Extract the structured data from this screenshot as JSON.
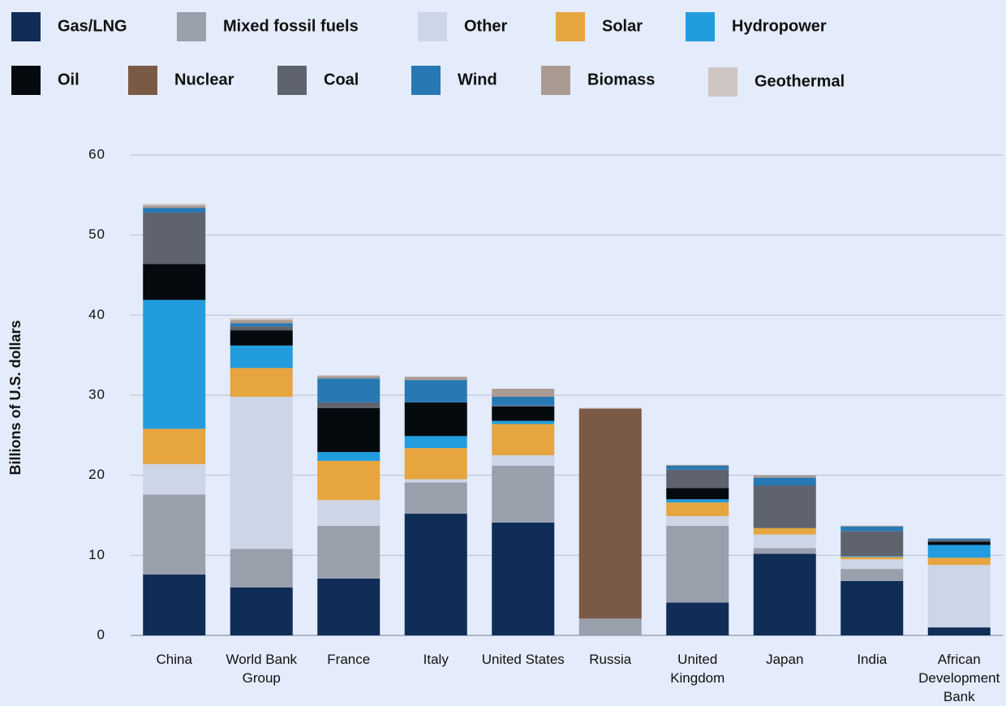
{
  "chart_data": {
    "type": "stacked_bar",
    "y_label": "Billions of U.S. dollars",
    "categories": [
      "China",
      "World Bank Group",
      "France",
      "Italy",
      "United States",
      "Russia",
      "United Kingdom",
      "Japan",
      "India",
      "African Development Bank"
    ],
    "series": [
      {
        "name": "Gas/LNG",
        "color": "#0f2d57",
        "values": [
          7.6,
          6.0,
          7.1,
          15.2,
          14.1,
          0,
          4.1,
          10.2,
          6.8,
          1.0
        ]
      },
      {
        "name": "Mixed fossil fuels",
        "color": "#9aa0ab",
        "values": [
          10.0,
          4.8,
          6.6,
          3.9,
          7.1,
          2.1,
          9.6,
          0.7,
          1.5,
          0
        ]
      },
      {
        "name": "Other",
        "color": "#ccd6e6",
        "values": [
          3.8,
          19.0,
          3.2,
          0.4,
          1.3,
          0,
          1.2,
          1.7,
          1.2,
          7.8
        ]
      },
      {
        "name": "Solar",
        "color": "#e6a53f",
        "values": [
          4.4,
          3.6,
          4.9,
          3.9,
          3.9,
          0,
          1.7,
          0.8,
          0.3,
          0.9
        ]
      },
      {
        "name": "Hydropower",
        "color": "#219ddf",
        "values": [
          16.1,
          2.8,
          1.1,
          1.5,
          0.4,
          0,
          0.4,
          0,
          0.1,
          1.6
        ]
      },
      {
        "name": "Oil",
        "color": "#050a0f",
        "values": [
          4.5,
          1.9,
          5.5,
          4.2,
          1.8,
          0,
          1.4,
          0,
          0,
          0.4
        ]
      },
      {
        "name": "Nuclear",
        "color": "#7a5a47",
        "values": [
          0,
          0,
          0,
          0,
          0,
          26.2,
          0,
          0,
          0,
          0
        ]
      },
      {
        "name": "Coal",
        "color": "#5e636e",
        "values": [
          6.4,
          0.5,
          0.7,
          0,
          0.1,
          0,
          2.3,
          5.3,
          3.1,
          0.2
        ]
      },
      {
        "name": "Wind",
        "color": "#2878b4",
        "values": [
          0.6,
          0.4,
          3.0,
          2.8,
          1.1,
          0,
          0.5,
          1.0,
          0.6,
          0.2
        ]
      },
      {
        "name": "Biomass",
        "color": "#ab9a91",
        "values": [
          0.3,
          0.4,
          0.3,
          0.4,
          1.0,
          0.1,
          0.1,
          0.3,
          0.1,
          0
        ]
      },
      {
        "name": "Geothermal",
        "color": "#cfc5c2",
        "values": [
          0.2,
          0.2,
          0.1,
          0,
          0,
          0,
          0,
          0,
          0,
          0
        ]
      }
    ],
    "ylim": [
      0,
      60
    ],
    "yticks": [
      0,
      10,
      20,
      30,
      40,
      50,
      60
    ],
    "grid": true
  }
}
